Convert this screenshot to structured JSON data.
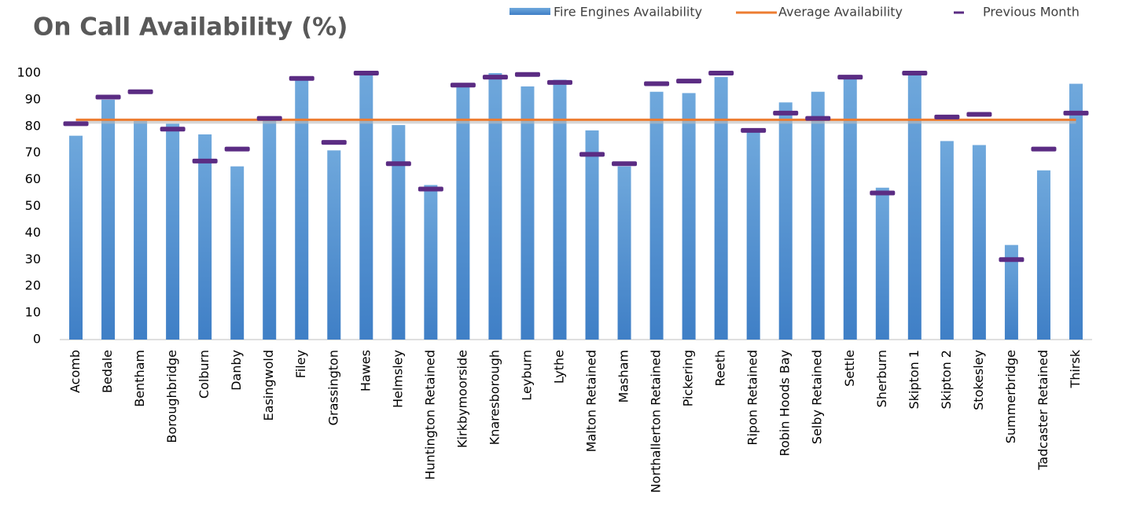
{
  "chart_data": {
    "type": "bar",
    "title": "On Call Availability (%)",
    "categories": [
      "Acomb",
      "Bedale",
      "Bentham",
      "Boroughbridge",
      "Colburn",
      "Danby",
      "Easingwold",
      "Filey",
      "Grassington",
      "Hawes",
      "Helmsley",
      "Huntington Retained",
      "Kirkbymoorside",
      "Knaresborough",
      "Leyburn",
      "Lythe",
      "Malton Retained",
      "Masham",
      "Northallerton Retained",
      "Pickering",
      "Reeth",
      "Ripon Retained",
      "Robin Hoods Bay",
      "Selby Retained",
      "Settle",
      "Sherburn",
      "Skipton 1",
      "Skipton 2",
      "Stokesley",
      "Summerbridge",
      "Tadcaster Retained",
      "Thirsk"
    ],
    "series": [
      {
        "name": "Fire Engines Availability",
        "color": "#5b9bd5",
        "values": [
          76.5,
          90,
          82,
          81,
          77,
          65,
          83,
          98,
          71,
          100,
          80.5,
          58,
          95,
          100,
          95,
          97.5,
          78.5,
          65,
          93,
          92.5,
          98.5,
          78,
          89,
          93,
          98,
          57,
          100,
          74.5,
          73,
          35.5,
          63.5,
          96
        ]
      },
      {
        "name": "Average Availability",
        "color": "#ed7d31",
        "value": 82.5
      },
      {
        "name": "Previous Month",
        "color": "#5b2c83",
        "values": [
          81,
          91,
          93,
          79,
          67,
          71.5,
          83,
          98,
          74,
          100,
          66,
          56.5,
          95.5,
          98.5,
          99.5,
          96.5,
          69.5,
          66,
          96,
          97,
          100,
          78.5,
          85,
          83,
          98.5,
          55,
          100,
          83.5,
          84.5,
          30,
          71.5,
          85
        ]
      }
    ],
    "ylim": [
      0,
      100
    ],
    "yticks": [
      0,
      10,
      20,
      30,
      40,
      50,
      60,
      70,
      80,
      90,
      100
    ],
    "grid": false,
    "legend": "top-right"
  }
}
